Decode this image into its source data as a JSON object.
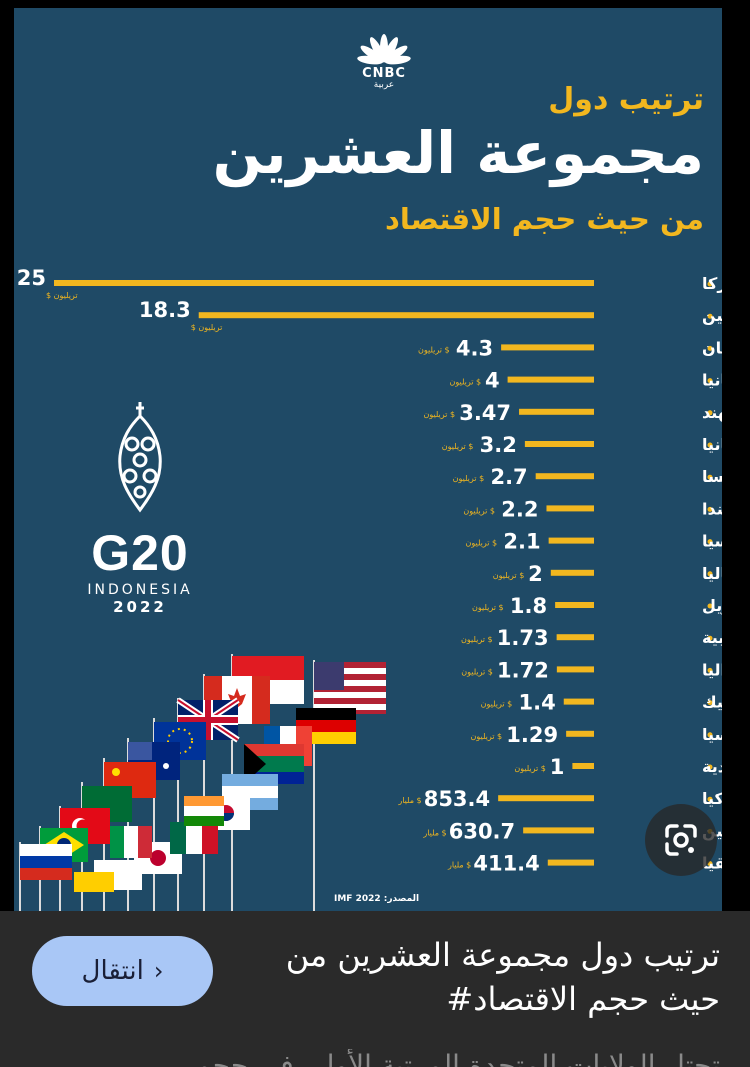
{
  "brand": {
    "name": "CNBC",
    "subname": "عربية"
  },
  "title": {
    "top": "ترتيب دول",
    "main": "مجموعة العشرين",
    "sub": "من حيث حجم الاقتصاد"
  },
  "chart_data": {
    "type": "bar",
    "orientation": "horizontal",
    "categories": [
      "أميركا",
      "الصين",
      "اليابان",
      "ألمانيا",
      "الهند",
      "بريطانيا",
      "فرنسا",
      "كندا",
      "روسيا",
      "إيطاليا",
      "البرازيل",
      "كوريا الجنوبية",
      "استراليا",
      "المكسيك",
      "اندونيسيا",
      "السعودية",
      "تركيا",
      "الأرجنتين",
      "جنوب أفريقيا"
    ],
    "values": [
      25,
      18.3,
      4.3,
      4,
      3.47,
      3.2,
      2.7,
      2.2,
      2.1,
      2,
      1.8,
      1.73,
      1.72,
      1.4,
      1.29,
      1,
      853.4,
      630.7,
      411.4
    ],
    "value_labels": [
      "25",
      "18.3",
      "4.3",
      "4",
      "3.47",
      "3.2",
      "2.7",
      "2.2",
      "2.1",
      "2",
      "1.8",
      "1.73",
      "1.72",
      "1.4",
      "1.29",
      "1",
      "853.4",
      "630.7",
      "411.4"
    ],
    "units": [
      "تريليون $",
      "تريليون $",
      "تريليون $",
      "تريليون $",
      "تريليون $",
      "تريليون $",
      "تريليون $",
      "تريليون $",
      "تريليون $",
      "تريليون $",
      "تريليون $",
      "تريليون $",
      "تريليون $",
      "تريليون $",
      "تريليون $",
      "تريليون $",
      "مليار $",
      "مليار $",
      "مليار $"
    ],
    "bar_color": "#f2b71f",
    "text_color": "#ffffff"
  },
  "g20": {
    "text": "G20",
    "country": "INDONESIA",
    "year": "2022"
  },
  "source": "المصدر: IMF 2022",
  "caption": {
    "text": "ترتيب دول مجموعة العشرين من حيث حجم الاقتصاد#",
    "peek": "تحتل الولايات المتحدة المرتبة الأولى في حجم"
  },
  "nav": {
    "label": "انتقال"
  },
  "colors": {
    "background": "#1f4a66",
    "accent": "#f2b71f",
    "button": "#a9c7f6",
    "caption_bg": "#2a2a2a"
  }
}
